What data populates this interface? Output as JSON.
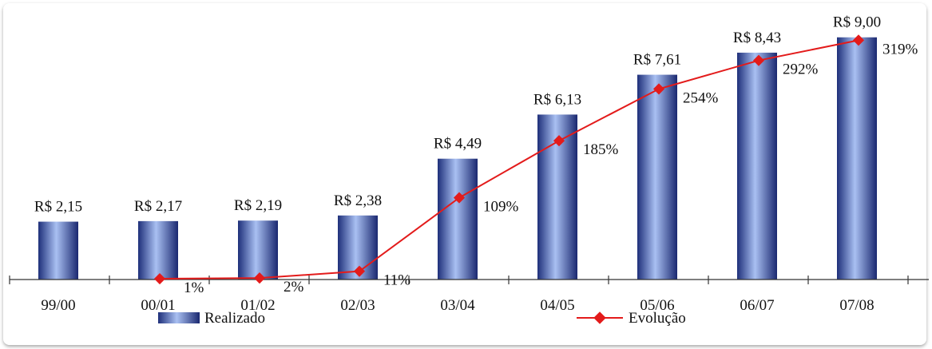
{
  "chart_data": {
    "type": "bar",
    "categories": [
      "99/00",
      "00/01",
      "01/02",
      "02/03",
      "03/04",
      "04/05",
      "05/06",
      "06/07",
      "07/08"
    ],
    "series": [
      {
        "name": "Realizado",
        "type": "bar",
        "values": [
          2.15,
          2.17,
          2.19,
          2.38,
          4.49,
          6.13,
          7.61,
          8.43,
          9.0
        ],
        "labels": [
          "R$ 2,15",
          "R$ 2,17",
          "R$ 2,19",
          "R$ 2,38",
          "R$ 4,49",
          "R$ 6,13",
          "R$ 7,61",
          "R$ 8,43",
          "R$ 9,00"
        ],
        "color": "#2f4aa8"
      },
      {
        "name": "Evolução",
        "type": "line",
        "values": [
          null,
          1,
          2,
          11,
          109,
          185,
          254,
          292,
          319
        ],
        "labels": [
          "",
          "1%",
          "2%",
          "11%",
          "109%",
          "185%",
          "254%",
          "292%",
          "319%"
        ],
        "color": "#e31b1b"
      }
    ],
    "ylim": [
      0,
      9.2
    ],
    "y2lim": [
      0,
      330
    ],
    "grid": false,
    "legend": "bottom"
  }
}
